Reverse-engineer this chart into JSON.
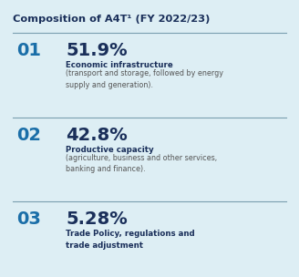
{
  "title": "Composition of A4T¹ (FY 2022/23)",
  "bg_color": "#ddeef4",
  "title_color": "#1a2f5a",
  "number_color": "#1a6ea8",
  "percent_color": "#1a2f5a",
  "label_color": "#1a2f5a",
  "desc_color": "#555555",
  "divider_color": "#7a9faf",
  "rows": [
    {
      "number": "01",
      "percent": "51.9%",
      "label": "Economic infrastructure",
      "desc": "(transport and storage, followed by energy\nsupply and generation)."
    },
    {
      "number": "02",
      "percent": "42.8%",
      "label": "Productive capacity",
      "desc": "(agriculture, business and other services,\nbanking and finance)."
    },
    {
      "number": "03",
      "percent": "5.28%",
      "label": "Trade Policy, regulations and\ntrade adjustment",
      "desc": ""
    }
  ],
  "title_fontsize": 8.2,
  "number_fontsize": 14,
  "percent_fontsize": 14,
  "label_fontsize": 6.2,
  "desc_fontsize": 5.8,
  "fig_width": 3.28,
  "fig_height": 3.04,
  "dpi": 100
}
